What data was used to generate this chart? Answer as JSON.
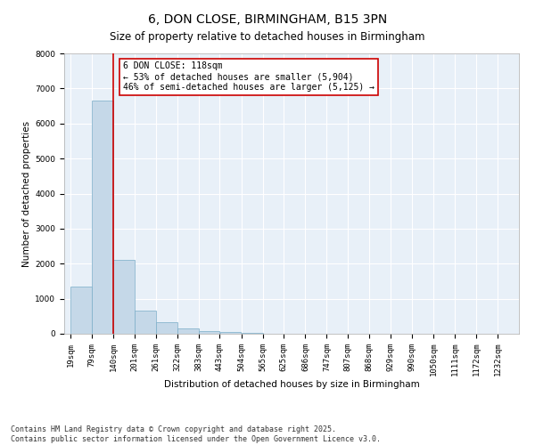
{
  "title": "6, DON CLOSE, BIRMINGHAM, B15 3PN",
  "subtitle": "Size of property relative to detached houses in Birmingham",
  "xlabel": "Distribution of detached houses by size in Birmingham",
  "ylabel": "Number of detached properties",
  "bar_color": "#c5d8e8",
  "bar_edge_color": "#7aadc8",
  "background_color": "#e8f0f8",
  "grid_color": "#ffffff",
  "annotation_box_color": "#cc0000",
  "annotation_text": "6 DON CLOSE: 118sqm\n← 53% of detached houses are smaller (5,904)\n46% of semi-detached houses are larger (5,125) →",
  "vline_color": "#cc0000",
  "categories": [
    "19sqm",
    "79sqm",
    "140sqm",
    "201sqm",
    "261sqm",
    "322sqm",
    "383sqm",
    "443sqm",
    "504sqm",
    "565sqm",
    "625sqm",
    "686sqm",
    "747sqm",
    "807sqm",
    "868sqm",
    "929sqm",
    "990sqm",
    "1050sqm",
    "1111sqm",
    "1172sqm",
    "1232sqm"
  ],
  "bin_edges": [
    19,
    79,
    140,
    201,
    261,
    322,
    383,
    443,
    504,
    565,
    625,
    686,
    747,
    807,
    868,
    929,
    990,
    1050,
    1111,
    1172,
    1232,
    1293
  ],
  "values": [
    1350,
    6650,
    2100,
    650,
    320,
    150,
    80,
    40,
    20,
    10,
    5,
    3,
    2,
    1,
    1,
    0,
    0,
    0,
    0,
    0,
    0
  ],
  "ylim": [
    0,
    8000
  ],
  "yticks": [
    0,
    1000,
    2000,
    3000,
    4000,
    5000,
    6000,
    7000,
    8000
  ],
  "footnote": "Contains HM Land Registry data © Crown copyright and database right 2025.\nContains public sector information licensed under the Open Government Licence v3.0.",
  "title_fontsize": 10,
  "subtitle_fontsize": 8.5,
  "axis_label_fontsize": 7.5,
  "tick_fontsize": 6.5,
  "annotation_fontsize": 7,
  "footnote_fontsize": 6
}
